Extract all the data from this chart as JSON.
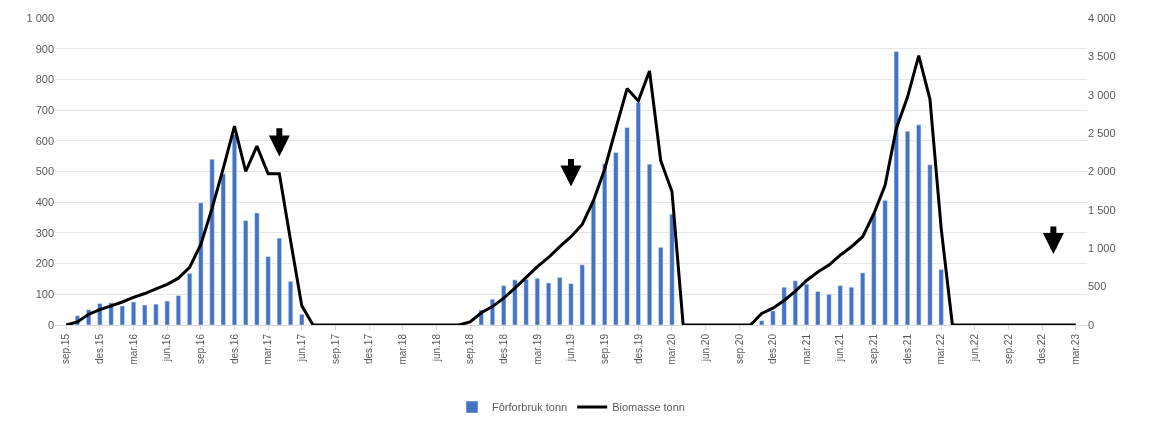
{
  "chart_data": {
    "type": "bar",
    "categories": [
      "sep.15",
      null,
      null,
      "des.15",
      null,
      null,
      "mar.16",
      null,
      null,
      "jun.16",
      null,
      null,
      "sep.16",
      null,
      null,
      "des.16",
      null,
      null,
      "mar.17",
      null,
      null,
      "jun.17",
      null,
      null,
      "sep.17",
      null,
      null,
      "des.17",
      null,
      null,
      "mar.18",
      null,
      null,
      "jun.18",
      null,
      null,
      "sep.18",
      null,
      null,
      "des.18",
      null,
      null,
      "mar.19",
      null,
      null,
      "jun.19",
      null,
      null,
      "sep.19",
      null,
      null,
      "des.19",
      null,
      null,
      "mar.20",
      null,
      null,
      "jun.20",
      null,
      null,
      "sep.20",
      null,
      null,
      "des.20",
      null,
      null,
      "mar.21",
      null,
      null,
      "jun.21",
      null,
      null,
      "sep.21",
      null,
      null,
      "des.21",
      null,
      null,
      "mar.22",
      null,
      null,
      "jun.22",
      null,
      null,
      "sep.22",
      null,
      null,
      "des.22",
      null,
      null,
      "mar.23"
    ],
    "series": [
      {
        "name": "Fôrforbruk tonn",
        "color": "#4472c4",
        "values": [
          null,
          30,
          50,
          70,
          72,
          62,
          75,
          65,
          68,
          78,
          96,
          168,
          398,
          540,
          493,
          620,
          340,
          365,
          223,
          283,
          142,
          35,
          null,
          null,
          null,
          null,
          null,
          null,
          null,
          null,
          null,
          null,
          null,
          null,
          null,
          null,
          null,
          49,
          84,
          128,
          147,
          149,
          152,
          137,
          155,
          135,
          196,
          405,
          525,
          562,
          643,
          724,
          524,
          253,
          361,
          null,
          null,
          null,
          null,
          null,
          null,
          null,
          14,
          46,
          123,
          144,
          133,
          109,
          100,
          128,
          123,
          170,
          362,
          406,
          891,
          631,
          652,
          522,
          181,
          null,
          null,
          null,
          null,
          null,
          null,
          null,
          null,
          null,
          null,
          null,
          null
        ]
      },
      {
        "name": "Biomasse tonn",
        "type": "line",
        "axis": "y2",
        "color": "#000000",
        "line_style": "solid",
        "marker": "none",
        "values": [
          0,
          40,
          140,
          200,
          250,
          300,
          360,
          410,
          470,
          530,
          610,
          750,
          1050,
          1520,
          2040,
          2590,
          2000,
          2330,
          1970,
          1970,
          1100,
          250,
          0,
          0,
          0,
          0,
          0,
          0,
          0,
          0,
          0,
          0,
          0,
          0,
          0,
          0,
          40,
          160,
          240,
          350,
          480,
          620,
          760,
          880,
          1020,
          1150,
          1310,
          1620,
          2030,
          2560,
          3080,
          2920,
          3310,
          2140,
          1740,
          0,
          0,
          0,
          0,
          0,
          0,
          0,
          150,
          220,
          320,
          440,
          580,
          690,
          780,
          910,
          1020,
          1150,
          1450,
          1820,
          2560,
          2970,
          3510,
          2940,
          1260,
          0,
          0,
          0,
          0,
          0,
          0,
          0,
          0,
          0,
          0,
          0,
          0
        ]
      }
    ],
    "ylim": [
      0,
      1000
    ],
    "yticks": [
      0,
      100,
      200,
      300,
      400,
      500,
      600,
      700,
      800,
      900,
      {
        "value": 1000,
        "label": "1 000"
      }
    ],
    "y2lim": [
      0,
      4000
    ],
    "y2ticks": [
      0,
      500,
      {
        "value": 1000,
        "label": "1 000"
      },
      {
        "value": 1500,
        "label": "1 500"
      },
      {
        "value": 2000,
        "label": "2 000"
      },
      {
        "value": 2500,
        "label": "2 500"
      },
      {
        "value": 3000,
        "label": "3 000"
      },
      {
        "value": 3500,
        "label": "3 500"
      },
      {
        "value": 4000,
        "label": "4 000"
      }
    ],
    "grid": "y",
    "legend": "bottom"
  }
}
